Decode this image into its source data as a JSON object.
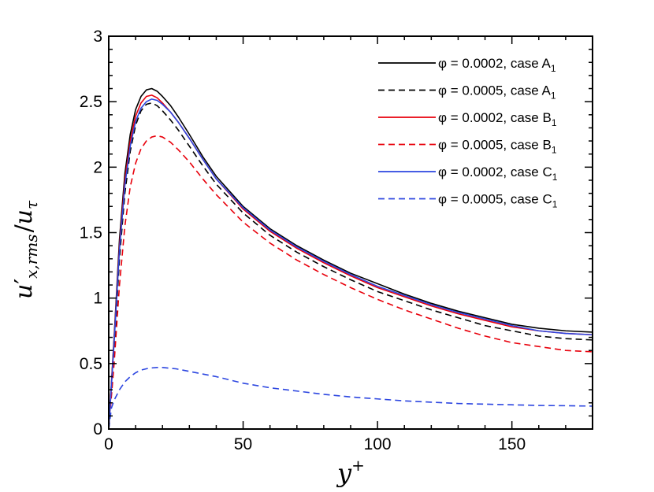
{
  "chart_data": {
    "type": "line",
    "title": "",
    "xlabel": "y+",
    "ylabel": "u'x,rms/uτ",
    "xlabel_parts": {
      "base": "y",
      "sup": "+"
    },
    "ylabel_parts": {
      "base": "u",
      "prime": "′",
      "sub": "x,rms",
      "slash": "/",
      "base2": "u",
      "sub2": "τ"
    },
    "xlim": [
      0,
      180
    ],
    "ylim": [
      0,
      3
    ],
    "xticks": [
      0,
      50,
      100,
      150
    ],
    "yticks": [
      0,
      0.5,
      1,
      1.5,
      2,
      2.5,
      3
    ],
    "ytick_labels": [
      "0",
      "0.5",
      "1",
      "1.5",
      "2",
      "2.5",
      "3"
    ],
    "xtick_labels": [
      "0",
      "50",
      "100",
      "150"
    ],
    "legend_position": "top-right",
    "series": [
      {
        "name": "φ = 0.0002, case A1",
        "legend_text": "φ = 0.0002, case A",
        "legend_sub": "1",
        "color": "#000000",
        "dash": "solid",
        "x": [
          0,
          2,
          4,
          6,
          8,
          10,
          12,
          14,
          16,
          18,
          20,
          23,
          26,
          30,
          35,
          40,
          50,
          60,
          70,
          80,
          90,
          100,
          110,
          120,
          130,
          140,
          150,
          160,
          170,
          180
        ],
        "y": [
          0,
          0.7,
          1.45,
          1.95,
          2.25,
          2.44,
          2.54,
          2.59,
          2.6,
          2.58,
          2.54,
          2.47,
          2.38,
          2.25,
          2.08,
          1.93,
          1.7,
          1.53,
          1.4,
          1.29,
          1.19,
          1.11,
          1.03,
          0.96,
          0.9,
          0.85,
          0.8,
          0.77,
          0.75,
          0.74
        ]
      },
      {
        "name": "φ = 0.0005, case A1",
        "legend_text": "φ = 0.0005, case A",
        "legend_sub": "1",
        "color": "#000000",
        "dash": "dashed",
        "x": [
          0,
          2,
          4,
          6,
          8,
          10,
          12,
          14,
          16,
          18,
          20,
          23,
          26,
          30,
          35,
          40,
          50,
          60,
          70,
          80,
          90,
          100,
          110,
          120,
          130,
          140,
          150,
          160,
          170,
          180
        ],
        "y": [
          0,
          0.6,
          1.3,
          1.8,
          2.12,
          2.32,
          2.43,
          2.48,
          2.49,
          2.47,
          2.43,
          2.36,
          2.28,
          2.16,
          2.01,
          1.87,
          1.65,
          1.48,
          1.35,
          1.24,
          1.14,
          1.05,
          0.98,
          0.91,
          0.85,
          0.79,
          0.75,
          0.71,
          0.69,
          0.68
        ]
      },
      {
        "name": "φ = 0.0002, case B1",
        "legend_text": "φ = 0.0002, case B",
        "legend_sub": "1",
        "color": "#e8000b",
        "dash": "solid",
        "x": [
          0,
          2,
          4,
          6,
          8,
          10,
          12,
          14,
          16,
          18,
          20,
          23,
          26,
          30,
          35,
          40,
          50,
          60,
          70,
          80,
          90,
          100,
          110,
          120,
          130,
          140,
          150,
          160,
          170,
          180
        ],
        "y": [
          0,
          0.68,
          1.4,
          1.9,
          2.2,
          2.39,
          2.49,
          2.54,
          2.55,
          2.53,
          2.49,
          2.42,
          2.34,
          2.22,
          2.06,
          1.91,
          1.68,
          1.51,
          1.38,
          1.27,
          1.17,
          1.08,
          1.01,
          0.94,
          0.88,
          0.83,
          0.78,
          0.75,
          0.73,
          0.72
        ]
      },
      {
        "name": "φ = 0.0005, case B1",
        "legend_text": "φ = 0.0005, case B",
        "legend_sub": "1",
        "color": "#e8000b",
        "dash": "dashed",
        "x": [
          0,
          2,
          4,
          6,
          8,
          10,
          12,
          14,
          16,
          18,
          20,
          23,
          26,
          30,
          35,
          40,
          50,
          60,
          70,
          80,
          90,
          100,
          110,
          120,
          130,
          140,
          150,
          160,
          170,
          180
        ],
        "y": [
          0,
          0.5,
          1.1,
          1.55,
          1.85,
          2.03,
          2.14,
          2.2,
          2.23,
          2.24,
          2.23,
          2.19,
          2.13,
          2.04,
          1.91,
          1.79,
          1.58,
          1.42,
          1.29,
          1.18,
          1.08,
          0.99,
          0.91,
          0.84,
          0.77,
          0.71,
          0.66,
          0.63,
          0.6,
          0.59
        ]
      },
      {
        "name": "φ = 0.0002, case C1",
        "legend_text": "φ = 0.0002, case C",
        "legend_sub": "1",
        "color": "#2c46e0",
        "dash": "solid",
        "x": [
          0,
          2,
          4,
          6,
          8,
          10,
          12,
          14,
          16,
          18,
          20,
          23,
          26,
          30,
          35,
          40,
          50,
          60,
          70,
          80,
          90,
          100,
          110,
          120,
          130,
          140,
          150,
          160,
          170,
          180
        ],
        "y": [
          0,
          0.66,
          1.37,
          1.86,
          2.16,
          2.35,
          2.45,
          2.5,
          2.52,
          2.51,
          2.48,
          2.42,
          2.34,
          2.22,
          2.06,
          1.91,
          1.69,
          1.52,
          1.39,
          1.28,
          1.18,
          1.09,
          1.02,
          0.95,
          0.89,
          0.84,
          0.79,
          0.75,
          0.73,
          0.72
        ]
      },
      {
        "name": "φ = 0.0005, case C1",
        "legend_text": "φ = 0.0005, case C",
        "legend_sub": "1",
        "color": "#2c46e0",
        "dash": "dashed",
        "x": [
          0,
          1,
          2,
          4,
          6,
          8,
          10,
          12,
          15,
          18,
          20,
          25,
          30,
          40,
          50,
          60,
          70,
          80,
          90,
          100,
          110,
          120,
          130,
          140,
          150,
          160,
          170,
          180
        ],
        "y": [
          0,
          0.16,
          0.22,
          0.3,
          0.36,
          0.4,
          0.43,
          0.45,
          0.465,
          0.47,
          0.47,
          0.46,
          0.44,
          0.4,
          0.35,
          0.315,
          0.29,
          0.265,
          0.245,
          0.23,
          0.215,
          0.205,
          0.195,
          0.19,
          0.185,
          0.18,
          0.178,
          0.175
        ]
      }
    ]
  }
}
